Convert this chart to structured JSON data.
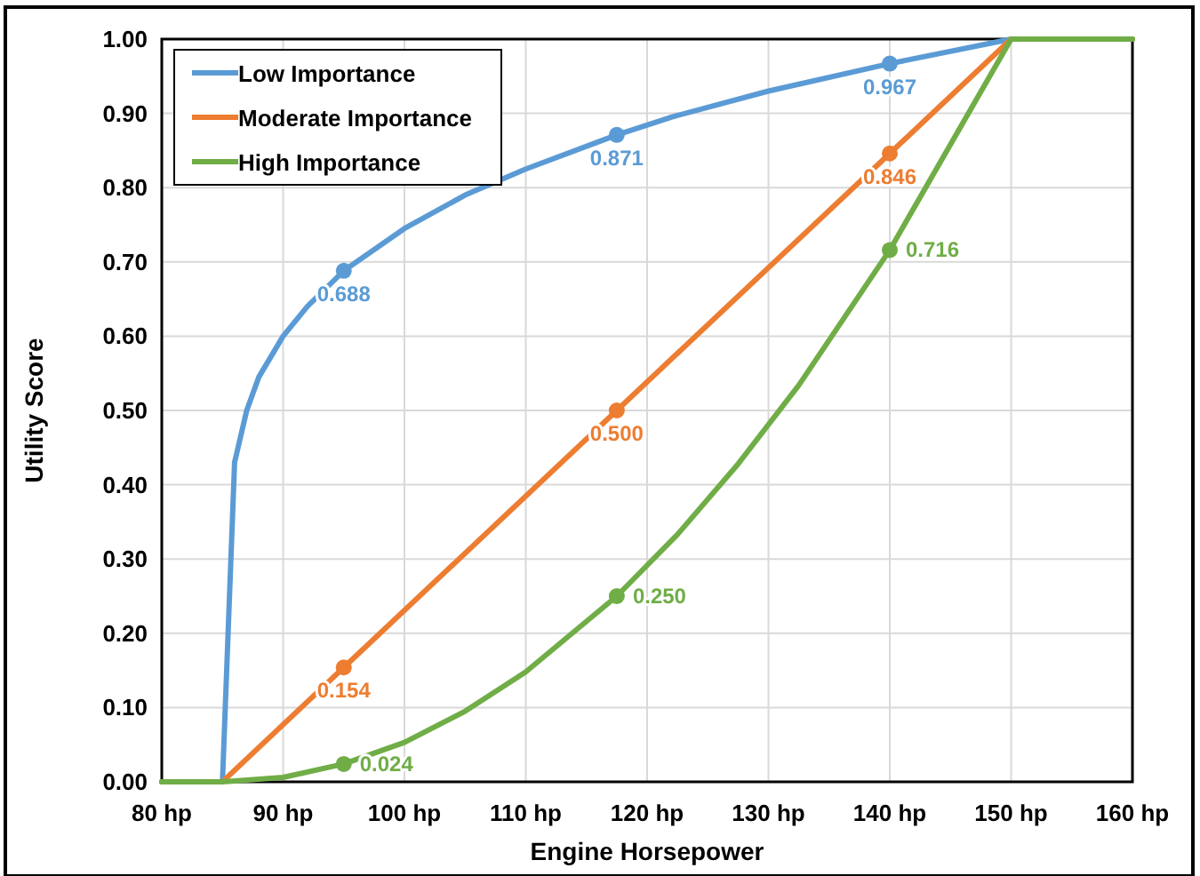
{
  "chart_data": {
    "type": "line",
    "xlabel": "Engine Horsepower",
    "ylabel": "Utility Score",
    "xlim": [
      80,
      160
    ],
    "ylim": [
      0,
      1
    ],
    "xticks": [
      {
        "value": 80,
        "label": "80 hp"
      },
      {
        "value": 90,
        "label": "90 hp"
      },
      {
        "value": 100,
        "label": "100 hp"
      },
      {
        "value": 110,
        "label": "110 hp"
      },
      {
        "value": 120,
        "label": "120 hp"
      },
      {
        "value": 130,
        "label": "130 hp"
      },
      {
        "value": 140,
        "label": "140 hp"
      },
      {
        "value": 150,
        "label": "150 hp"
      },
      {
        "value": 160,
        "label": "160 hp"
      }
    ],
    "yticks": [
      {
        "value": 0,
        "label": "0.00"
      },
      {
        "value": 0.1,
        "label": "0.10"
      },
      {
        "value": 0.2,
        "label": "0.20"
      },
      {
        "value": 0.3,
        "label": "0.30"
      },
      {
        "value": 0.4,
        "label": "0.40"
      },
      {
        "value": 0.5,
        "label": "0.50"
      },
      {
        "value": 0.6,
        "label": "0.60"
      },
      {
        "value": 0.7,
        "label": "0.70"
      },
      {
        "value": 0.8,
        "label": "0.80"
      },
      {
        "value": 0.9,
        "label": "0.90"
      },
      {
        "value": 1,
        "label": "1.00"
      }
    ],
    "grid": true,
    "legend": "top left",
    "line_style": "solid",
    "series": [
      {
        "name": "Low Importance",
        "color": "#5b9bd5",
        "x": [
          80,
          85,
          86,
          87,
          88,
          90,
          92,
          95,
          100,
          105,
          110,
          117.5,
          122,
          130,
          140,
          150,
          160
        ],
        "values": [
          0,
          0,
          0.43,
          0.5,
          0.545,
          0.6,
          0.64,
          0.688,
          0.745,
          0.79,
          0.825,
          0.871,
          0.895,
          0.93,
          0.967,
          1,
          1
        ]
      },
      {
        "name": "Moderate Importance",
        "color": "#ed7d31",
        "x": [
          80,
          85,
          95,
          117.5,
          140,
          150,
          160
        ],
        "values": [
          0,
          0,
          0.154,
          0.5,
          0.846,
          1,
          1
        ]
      },
      {
        "name": "High Importance",
        "color": "#70ad47",
        "x": [
          80,
          85,
          90,
          95,
          100,
          105,
          110,
          117.5,
          122.5,
          127.5,
          132.5,
          140,
          150,
          160
        ],
        "values": [
          0,
          0,
          0.006,
          0.024,
          0.053,
          0.095,
          0.148,
          0.25,
          0.333,
          0.428,
          0.534,
          0.716,
          1,
          1
        ]
      },
      {
        "type": "scatter",
        "marker": "circle",
        "color": "#5b9bd5",
        "x": [
          95,
          117.5,
          140
        ],
        "values": [
          0.688,
          0.871,
          0.967
        ],
        "value_labels": [
          "0.688",
          "0.871",
          "0.967"
        ]
      },
      {
        "type": "scatter",
        "marker": "circle",
        "color": "#ed7d31",
        "x": [
          95,
          117.5,
          140
        ],
        "values": [
          0.154,
          0.5,
          0.846
        ],
        "value_labels": [
          "0.154",
          "0.500",
          "0.846"
        ]
      },
      {
        "type": "scatter",
        "marker": "circle",
        "color": "#70ad47",
        "x": [
          95,
          117.5,
          140
        ],
        "values": [
          0.024,
          0.25,
          0.716
        ],
        "value_labels": [
          "0.024",
          "0.250",
          "0.716"
        ]
      }
    ]
  }
}
